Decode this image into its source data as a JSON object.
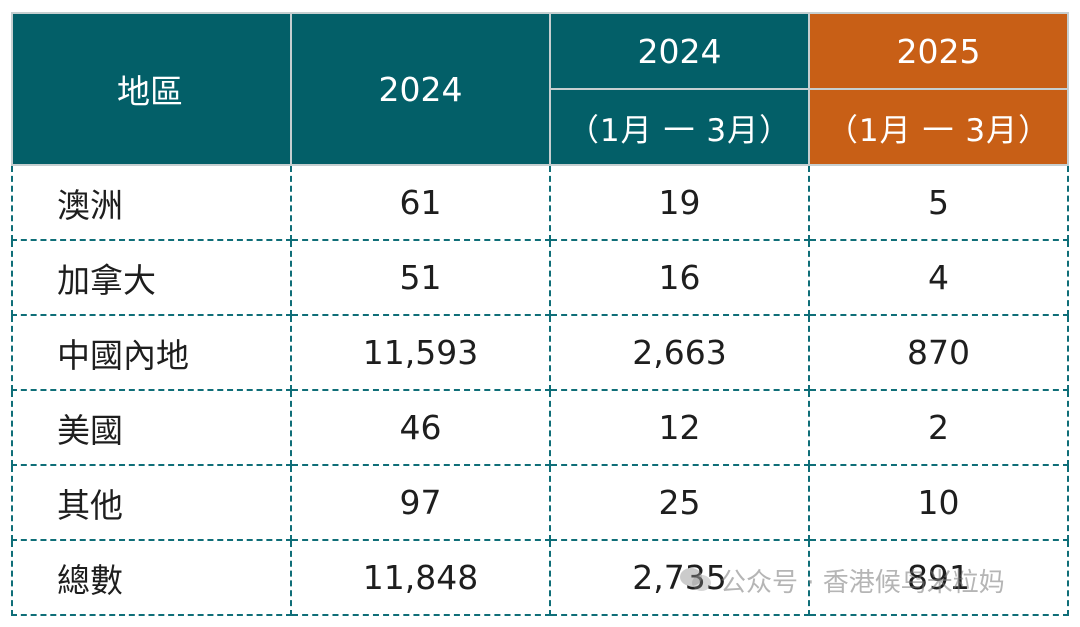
{
  "table": {
    "headers": {
      "region": "地區",
      "year_full": "2024",
      "period1_year": "2024",
      "period1_range": "（1月 一 3月）",
      "period2_year": "2025",
      "period2_range": "（1月 一 3月）"
    },
    "rows": [
      {
        "region": "澳洲",
        "full_2024": "61",
        "q1_2024": "19",
        "q1_2025": "5"
      },
      {
        "region": "加拿大",
        "full_2024": "51",
        "q1_2024": "16",
        "q1_2025": "4"
      },
      {
        "region": "中國內地",
        "full_2024": "11,593",
        "q1_2024": "2,663",
        "q1_2025": "870"
      },
      {
        "region": "美國",
        "full_2024": "46",
        "q1_2024": "12",
        "q1_2025": "2"
      },
      {
        "region": "其他",
        "full_2024": "97",
        "q1_2024": "25",
        "q1_2025": "10"
      },
      {
        "region": "總數",
        "full_2024": "11,848",
        "q1_2024": "2,735",
        "q1_2025": "891"
      }
    ]
  },
  "watermark": {
    "text": "公众号 · 香港候鸟米粒妈",
    "icon": "wechat-icon"
  },
  "colors": {
    "header_teal": "#035f68",
    "header_orange": "#c85f16",
    "grid_dash": "#0f6e78"
  }
}
